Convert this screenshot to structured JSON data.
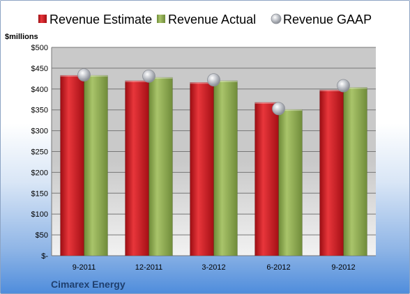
{
  "chart_data": {
    "type": "bar",
    "unit_label": "$millions",
    "company": "Cimarex Energy",
    "categories": [
      "9-2011",
      "12-2011",
      "3-2012",
      "6-2012",
      "9-2012"
    ],
    "series": [
      {
        "name": "Revenue Estimate",
        "kind": "bar",
        "color": "#c8161d",
        "values": [
          433,
          420,
          416,
          368,
          398
        ]
      },
      {
        "name": "Revenue Actual",
        "kind": "bar",
        "color": "#8aa64c",
        "values": [
          433,
          428,
          420,
          351,
          404
        ]
      },
      {
        "name": "Revenue GAAP",
        "kind": "marker",
        "color": "#b9bcc4",
        "values": [
          434,
          431,
          422,
          353,
          408
        ]
      }
    ],
    "ylim": [
      0,
      500
    ],
    "yticks": [
      "$-",
      "$50",
      "$100",
      "$150",
      "$200",
      "$250",
      "$300",
      "$350",
      "$400",
      "$450",
      "$500"
    ],
    "grid": true,
    "legend_position": "top"
  }
}
